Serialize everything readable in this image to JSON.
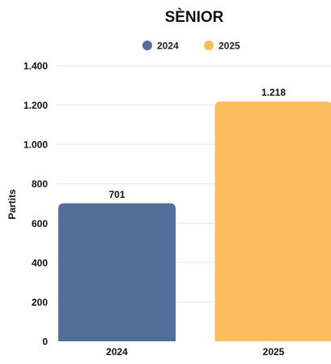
{
  "chart_data": {
    "type": "bar",
    "title": "SÈNIOR",
    "xlabel": "",
    "ylabel": "Partits",
    "categories": [
      "2024",
      "2025"
    ],
    "values": [
      701,
      1218
    ],
    "value_labels": [
      "701",
      "1.218"
    ],
    "colors": [
      "#526f9a",
      "#fcbd5d"
    ],
    "legend": {
      "position": "top",
      "entries": [
        {
          "label": "2024",
          "color": "#526f9a"
        },
        {
          "label": "2025",
          "color": "#fcbd5d"
        }
      ]
    },
    "ylim": [
      0,
      1400
    ],
    "yticks": [
      0,
      200,
      400,
      600,
      800,
      1000,
      1200,
      1400
    ],
    "ytick_labels": [
      "0",
      "200",
      "400",
      "600",
      "800",
      "1.000",
      "1.200",
      "1.400"
    ],
    "grid": true
  }
}
